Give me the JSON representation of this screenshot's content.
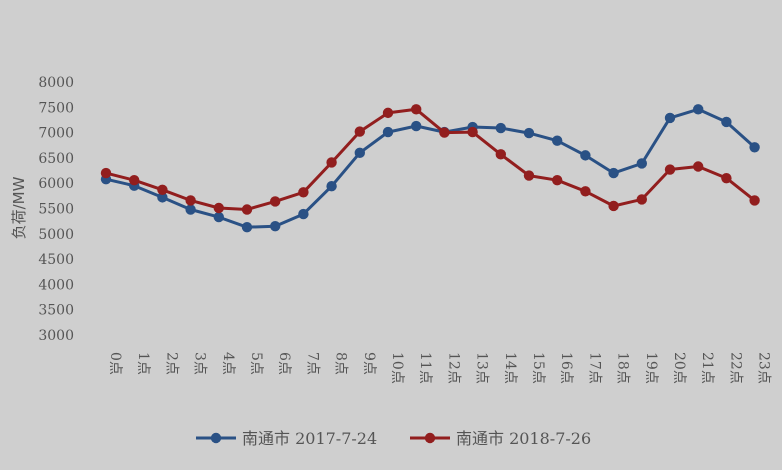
{
  "chart_data": {
    "type": "line",
    "categories": [
      "0点",
      "1点",
      "2点",
      "3点",
      "4点",
      "5点",
      "6点",
      "7点",
      "8点",
      "9点",
      "10点",
      "11点",
      "12点",
      "13点",
      "14点",
      "15点",
      "16点",
      "17点",
      "18点",
      "19点",
      "20点",
      "21点",
      "22点",
      "23点"
    ],
    "ylabel": "负荷/MW",
    "ylim": [
      3000,
      8000
    ],
    "yticks": [
      3000,
      3500,
      4000,
      4500,
      5000,
      5500,
      6000,
      6500,
      7000,
      7500,
      8000
    ],
    "grid": false,
    "legend_position": "bottom",
    "series": [
      {
        "name": "南通市 2017-7-24",
        "color": "#2a5185",
        "values": [
          6080,
          5950,
          5720,
          5480,
          5330,
          5130,
          5150,
          5390,
          5940,
          6600,
          7010,
          7130,
          7010,
          7110,
          7090,
          6990,
          6840,
          6550,
          6200,
          6390,
          7290,
          7460,
          7210,
          6710
        ]
      },
      {
        "name": "南通市 2018-7-26",
        "color": "#921e1e",
        "values": [
          6200,
          6060,
          5870,
          5660,
          5510,
          5480,
          5640,
          5820,
          6410,
          7020,
          7390,
          7460,
          7000,
          7010,
          6570,
          6150,
          6060,
          5840,
          5550,
          5680,
          6270,
          6330,
          6100,
          5660
        ]
      }
    ]
  }
}
